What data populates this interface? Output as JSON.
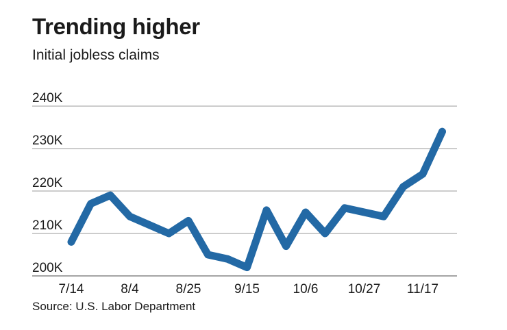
{
  "title": "Trending higher",
  "subtitle": "Initial jobless claims",
  "source": "Source: U.S. Labor Department",
  "colors": {
    "line": "#2369a5",
    "grid": "#9a9a9a",
    "text": "#1a1a1a"
  },
  "chart_data": {
    "type": "line",
    "title": "Trending higher",
    "subtitle": "Initial jobless claims",
    "xlabel": "",
    "ylabel": "",
    "ylim": [
      200000,
      240000
    ],
    "y_ticks": [
      200000,
      210000,
      220000,
      230000,
      240000
    ],
    "y_tick_labels": [
      "200K",
      "210K",
      "220K",
      "230K",
      "240K"
    ],
    "x_tick_labels": [
      "7/14",
      "8/4",
      "8/25",
      "9/15",
      "10/6",
      "10/27",
      "11/17"
    ],
    "x_tick_indices": [
      0,
      3,
      6,
      9,
      12,
      15,
      18
    ],
    "grid": true,
    "legend": "none",
    "series": [
      {
        "values": [
          208000,
          217000,
          219000,
          214000,
          212000,
          210000,
          213000,
          205000,
          204000,
          202000,
          215500,
          207000,
          215000,
          210000,
          216000,
          215000,
          214000,
          221000,
          224000,
          234000
        ]
      }
    ]
  }
}
